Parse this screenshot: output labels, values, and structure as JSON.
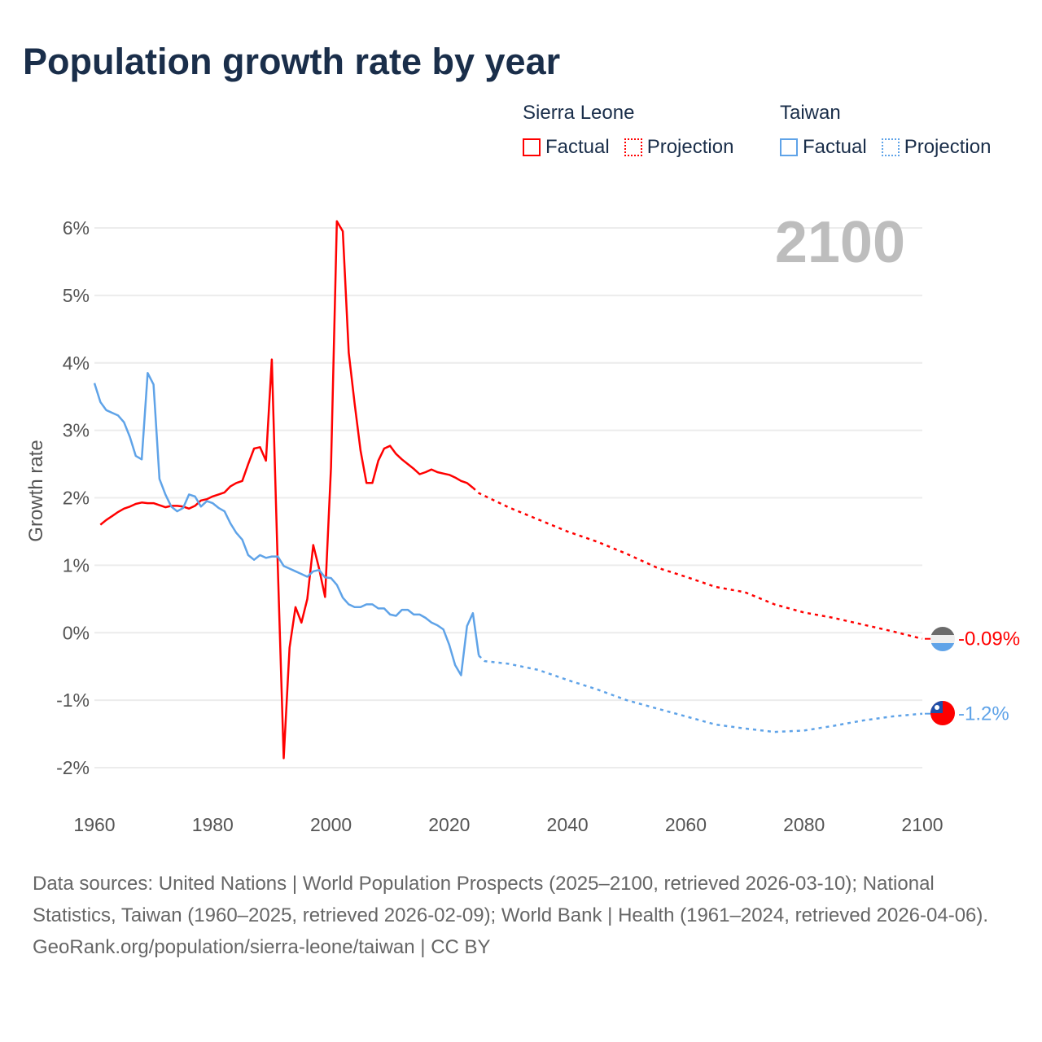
{
  "title": "Population growth rate by year",
  "legend": {
    "groups": [
      {
        "name": "Sierra Leone",
        "factual": "Factual",
        "projection": "Projection",
        "color": "#ff0000"
      },
      {
        "name": "Taiwan",
        "factual": "Factual",
        "projection": "Projection",
        "color": "#5fa3e8"
      }
    ]
  },
  "year_label": "2100",
  "chart_data": {
    "type": "line",
    "title": "Population growth rate by year",
    "ylabel": "Growth rate",
    "xlabel": "",
    "xlim": [
      1960,
      2100
    ],
    "ylim": [
      -2,
      6
    ],
    "x_ticks": [
      "1960",
      "1980",
      "2000",
      "2020",
      "2040",
      "2060",
      "2080",
      "2100"
    ],
    "x_tick_values": [
      1960,
      1980,
      2000,
      2020,
      2040,
      2060,
      2080,
      2100
    ],
    "y_ticks": [
      "-2%",
      "-1%",
      "0%",
      "1%",
      "2%",
      "3%",
      "4%",
      "5%",
      "6%"
    ],
    "y_tick_values": [
      -2,
      -1,
      0,
      1,
      2,
      3,
      4,
      5,
      6
    ],
    "grid": true,
    "series": [
      {
        "name": "Sierra Leone",
        "kind": "factual",
        "color": "#ff0000",
        "x": [
          1961,
          1962,
          1963,
          1964,
          1965,
          1966,
          1967,
          1968,
          1969,
          1970,
          1971,
          1972,
          1973,
          1974,
          1975,
          1976,
          1977,
          1978,
          1979,
          1980,
          1981,
          1982,
          1983,
          1984,
          1985,
          1986,
          1987,
          1988,
          1989,
          1990,
          1991,
          1992,
          1993,
          1994,
          1995,
          1996,
          1997,
          1998,
          1999,
          2000,
          2001,
          2002,
          2003,
          2004,
          2005,
          2006,
          2007,
          2008,
          2009,
          2010,
          2011,
          2012,
          2013,
          2014,
          2015,
          2016,
          2017,
          2018,
          2019,
          2020,
          2021,
          2022,
          2023,
          2024
        ],
        "y": [
          1.6,
          1.67,
          1.73,
          1.79,
          1.84,
          1.87,
          1.91,
          1.93,
          1.92,
          1.92,
          1.89,
          1.86,
          1.88,
          1.88,
          1.87,
          1.84,
          1.88,
          1.96,
          1.98,
          2.02,
          2.05,
          2.08,
          2.17,
          2.22,
          2.25,
          2.5,
          2.73,
          2.75,
          2.55,
          4.05,
          1.0,
          -1.86,
          -0.22,
          0.38,
          0.15,
          0.5,
          1.3,
          0.95,
          0.53,
          2.45,
          6.1,
          5.95,
          4.15,
          3.4,
          2.7,
          2.22,
          2.22,
          2.55,
          2.73,
          2.77,
          2.65,
          2.57,
          2.5,
          2.43,
          2.35,
          2.38,
          2.42,
          2.38,
          2.36,
          2.34,
          2.3,
          2.25,
          2.22,
          2.15
        ]
      },
      {
        "name": "Sierra Leone",
        "kind": "projection",
        "color": "#ff0000",
        "x": [
          2024,
          2025,
          2030,
          2035,
          2040,
          2045,
          2050,
          2055,
          2060,
          2065,
          2070,
          2075,
          2080,
          2085,
          2090,
          2095,
          2100
        ],
        "y": [
          2.15,
          2.07,
          1.86,
          1.68,
          1.5,
          1.35,
          1.17,
          0.97,
          0.83,
          0.68,
          0.6,
          0.42,
          0.3,
          0.22,
          0.12,
          0.02,
          -0.09
        ]
      },
      {
        "name": "Taiwan",
        "kind": "factual",
        "color": "#5fa3e8",
        "x": [
          1960,
          1961,
          1962,
          1963,
          1964,
          1965,
          1966,
          1967,
          1968,
          1969,
          1970,
          1971,
          1972,
          1973,
          1974,
          1975,
          1976,
          1977,
          1978,
          1979,
          1980,
          1981,
          1982,
          1983,
          1984,
          1985,
          1986,
          1987,
          1988,
          1989,
          1990,
          1991,
          1992,
          1993,
          1994,
          1995,
          1996,
          1997,
          1998,
          1999,
          2000,
          2001,
          2002,
          2003,
          2004,
          2005,
          2006,
          2007,
          2008,
          2009,
          2010,
          2011,
          2012,
          2013,
          2014,
          2015,
          2016,
          2017,
          2018,
          2019,
          2020,
          2021,
          2022,
          2023,
          2024,
          2025
        ],
        "y": [
          3.7,
          3.42,
          3.3,
          3.26,
          3.22,
          3.12,
          2.9,
          2.62,
          2.57,
          3.85,
          3.68,
          2.28,
          2.05,
          1.87,
          1.8,
          1.85,
          2.05,
          2.02,
          1.87,
          1.95,
          1.92,
          1.85,
          1.8,
          1.62,
          1.48,
          1.38,
          1.15,
          1.08,
          1.15,
          1.11,
          1.13,
          1.13,
          0.99,
          0.95,
          0.91,
          0.87,
          0.83,
          0.91,
          0.93,
          0.82,
          0.81,
          0.71,
          0.52,
          0.42,
          0.38,
          0.38,
          0.42,
          0.42,
          0.36,
          0.36,
          0.27,
          0.25,
          0.34,
          0.34,
          0.27,
          0.27,
          0.22,
          0.15,
          0.11,
          0.05,
          -0.18,
          -0.48,
          -0.63,
          0.1,
          0.29,
          -0.34
        ]
      },
      {
        "name": "Taiwan",
        "kind": "projection",
        "color": "#5fa3e8",
        "x": [
          2025,
          2026,
          2030,
          2035,
          2040,
          2045,
          2050,
          2055,
          2060,
          2065,
          2070,
          2075,
          2080,
          2085,
          2090,
          2095,
          2100
        ],
        "y": [
          -0.34,
          -0.42,
          -0.46,
          -0.55,
          -0.7,
          -0.84,
          -1.0,
          -1.12,
          -1.24,
          -1.36,
          -1.42,
          -1.47,
          -1.45,
          -1.38,
          -1.3,
          -1.24,
          -1.2
        ]
      }
    ],
    "end_labels": [
      {
        "series": "Sierra Leone",
        "text": "-0.09%",
        "value": -0.09,
        "color": "#ff0000"
      },
      {
        "series": "Taiwan",
        "text": "-1.2%",
        "value": -1.2,
        "color": "#5fa3e8"
      }
    ]
  },
  "footer": {
    "sources": "Data sources: United Nations | World Population Prospects (2025–2100, retrieved 2026-03-10); National Statistics, Taiwan (1960–2025, retrieved 2026-02-09); World Bank | Health (1961–2024, retrieved 2026-04-06).",
    "credit": "GeoRank.org/population/sierra-leone/taiwan | CC BY"
  }
}
